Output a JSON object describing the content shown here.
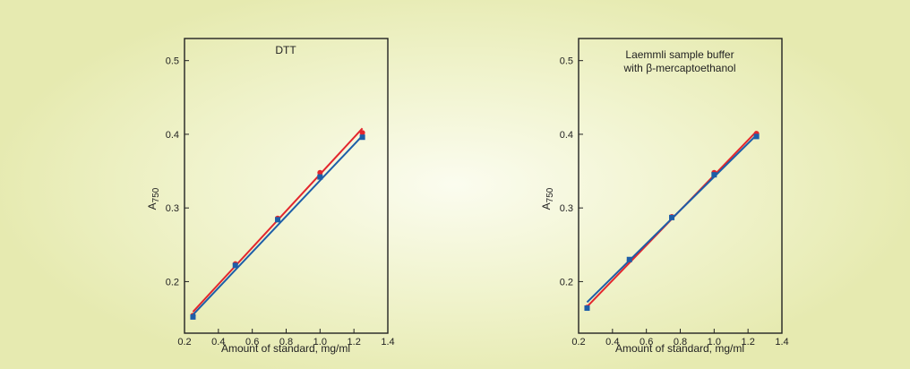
{
  "colors": {
    "background": "#eef2c4",
    "frame": "#222222",
    "series_red": "#e3262d",
    "series_blue": "#1d5ea8"
  },
  "chart_data": [
    {
      "type": "line",
      "title": "DTT",
      "title_lines": [
        "DTT"
      ],
      "xlabel": "Amount of standard, mg/ml",
      "ylabel": "A",
      "ylabel_sub": "750",
      "xlim": [
        0.2,
        1.4
      ],
      "ylim": [
        0.13,
        0.53
      ],
      "xticks": [
        0.2,
        0.4,
        0.6,
        0.8,
        1.0,
        1.2,
        1.4
      ],
      "xtick_labels": [
        "0.2",
        "0.4",
        "0.6",
        "0.8",
        "1.0",
        "1.2",
        "1.4"
      ],
      "yticks": [
        0.2,
        0.3,
        0.4,
        0.5
      ],
      "ytick_labels": [
        "0.2",
        "0.3",
        "0.4",
        "0.5"
      ],
      "grid": false,
      "series": [
        {
          "color": "#e3262d",
          "marker": "circle",
          "x": [
            0.25,
            0.5,
            0.75,
            1.0,
            1.25
          ],
          "y": [
            0.154,
            0.224,
            0.286,
            0.348,
            0.402
          ],
          "fit": [
            [
              0.25,
              0.159
            ],
            [
              1.25,
              0.408
            ]
          ]
        },
        {
          "color": "#1d5ea8",
          "marker": "square",
          "x": [
            0.25,
            0.5,
            0.75,
            1.0,
            1.25
          ],
          "y": [
            0.152,
            0.222,
            0.284,
            0.342,
            0.396
          ],
          "fit": [
            [
              0.25,
              0.155
            ],
            [
              1.25,
              0.398
            ]
          ]
        }
      ]
    },
    {
      "type": "line",
      "title": "Laemmli sample buffer with β-mercaptoethanol",
      "title_lines": [
        "Laemmli sample buffer",
        "with β-mercaptoethanol"
      ],
      "xlabel": "Amount of standard, mg/ml",
      "ylabel": "A",
      "ylabel_sub": "750",
      "xlim": [
        0.2,
        1.4
      ],
      "ylim": [
        0.13,
        0.53
      ],
      "xticks": [
        0.2,
        0.4,
        0.6,
        0.8,
        1.0,
        1.2,
        1.4
      ],
      "xtick_labels": [
        "0.2",
        "0.4",
        "0.6",
        "0.8",
        "1.0",
        "1.2",
        "1.4"
      ],
      "yticks": [
        0.2,
        0.3,
        0.4,
        0.5
      ],
      "ytick_labels": [
        "0.2",
        "0.3",
        "0.4",
        "0.5"
      ],
      "grid": false,
      "series": [
        {
          "color": "#e3262d",
          "marker": "circle",
          "x": [
            0.25,
            0.5,
            0.75,
            1.0,
            1.25
          ],
          "y": [
            0.165,
            0.229,
            0.288,
            0.348,
            0.401
          ],
          "fit": [
            [
              0.25,
              0.166
            ],
            [
              1.25,
              0.404
            ]
          ]
        },
        {
          "color": "#1d5ea8",
          "marker": "square",
          "x": [
            0.25,
            0.5,
            0.75,
            1.0,
            1.25
          ],
          "y": [
            0.164,
            0.23,
            0.287,
            0.345,
            0.397
          ],
          "fit": [
            [
              0.25,
              0.172
            ],
            [
              1.25,
              0.399
            ]
          ]
        }
      ]
    }
  ]
}
